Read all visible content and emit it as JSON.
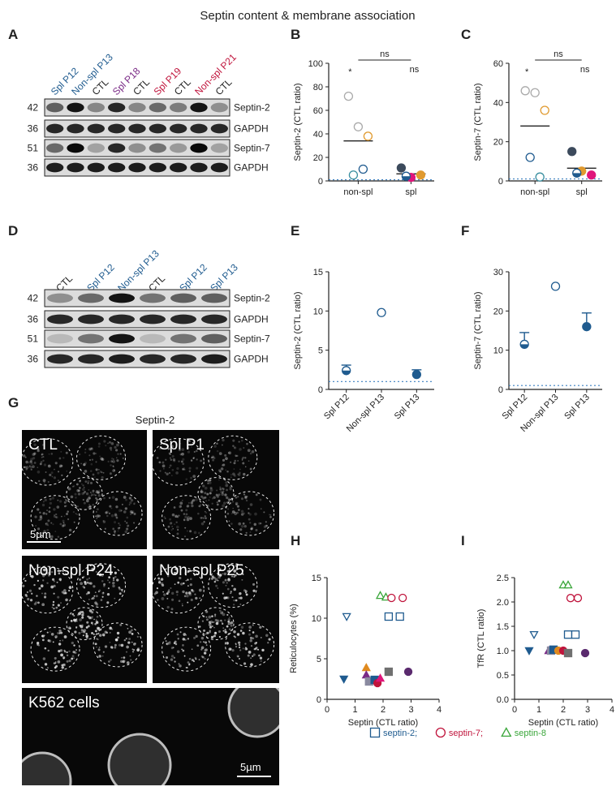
{
  "figure_title": "Septin content & membrane association",
  "panels": {
    "A": {
      "letter": "A",
      "lanes": [
        {
          "label": "Spl P12",
          "color": "#1f5b8f"
        },
        {
          "label": "Non-spl P13",
          "color": "#1f5b8f"
        },
        {
          "label": "CTL",
          "color": "#222222"
        },
        {
          "label": "Spl P18",
          "color": "#7a2a86"
        },
        {
          "label": "CTL",
          "color": "#222222"
        },
        {
          "label": "Spl P19",
          "color": "#c0143c"
        },
        {
          "label": "CTL",
          "color": "#222222"
        },
        {
          "label": "Non-spl P21",
          "color": "#c0143c"
        },
        {
          "label": "CTL",
          "color": "#222222"
        }
      ],
      "blots": [
        {
          "mw": "42",
          "name": "Septin-2",
          "intensity": [
            0.55,
            0.95,
            0.35,
            0.85,
            0.35,
            0.5,
            0.4,
            0.95,
            0.3
          ]
        },
        {
          "mw": "36",
          "name": "GAPDH",
          "intensity": [
            0.85,
            0.85,
            0.85,
            0.85,
            0.85,
            0.85,
            0.85,
            0.85,
            0.85
          ]
        },
        {
          "mw": "51",
          "name": "Septin-7",
          "intensity": [
            0.5,
            1.0,
            0.2,
            0.85,
            0.3,
            0.45,
            0.25,
            1.0,
            0.2
          ]
        },
        {
          "mw": "36",
          "name": "GAPDH",
          "intensity": [
            0.9,
            0.9,
            0.9,
            0.9,
            0.9,
            0.9,
            0.9,
            0.9,
            0.9
          ]
        }
      ]
    },
    "D": {
      "letter": "D",
      "lanes": [
        {
          "label": "CTL",
          "color": "#222222"
        },
        {
          "label": "Spl P12",
          "color": "#1f5b8f"
        },
        {
          "label": "Non-spl P13",
          "color": "#1f5b8f"
        },
        {
          "label": "CTL",
          "color": "#222222"
        },
        {
          "label": "Spl P12",
          "color": "#1f5b8f"
        },
        {
          "label": "Spl P13",
          "color": "#1f5b8f"
        }
      ],
      "blots": [
        {
          "mw": "42",
          "name": "Septin-2",
          "intensity": [
            0.3,
            0.5,
            0.95,
            0.45,
            0.55,
            0.55
          ]
        },
        {
          "mw": "36",
          "name": "GAPDH",
          "intensity": [
            0.85,
            0.85,
            0.85,
            0.85,
            0.85,
            0.85
          ]
        },
        {
          "mw": "51",
          "name": "Septin-7",
          "intensity": [
            0.08,
            0.45,
            0.95,
            0.08,
            0.45,
            0.55
          ]
        },
        {
          "mw": "36",
          "name": "GAPDH",
          "intensity": [
            0.85,
            0.85,
            0.9,
            0.85,
            0.85,
            0.9
          ]
        }
      ]
    },
    "G": {
      "letter": "G",
      "title": "Septin-2",
      "images": [
        {
          "label": "CTL",
          "scale": "5µm"
        },
        {
          "label": "Spl P1",
          "scale": ""
        },
        {
          "label": "Non-spl P24",
          "scale": ""
        },
        {
          "label": "Non-spl P25",
          "scale": ""
        },
        {
          "label": "K562 cells",
          "scale": "5µm"
        }
      ]
    },
    "legend": [
      {
        "symbol": "square",
        "label": "septin-2;",
        "color": "#1f5b8f"
      },
      {
        "symbol": "circle",
        "label": "septin-7;",
        "color": "#c0143c"
      },
      {
        "symbol": "triangle",
        "label": "septin-8",
        "color": "#3aa63a"
      }
    ]
  },
  "chart_data": [
    {
      "panel": "B",
      "type": "scatter",
      "ylabel": "Septin-2 (CTL ratio)",
      "xlabel": "",
      "categories": [
        "non-spl",
        "spl"
      ],
      "ylim": [
        0,
        100
      ],
      "yticks": [
        0,
        20,
        40,
        60,
        80,
        100
      ],
      "reference_line": 1,
      "means": [
        {
          "category": "non-spl",
          "value": 34
        },
        {
          "category": "spl",
          "value": 6
        }
      ],
      "significance": [
        {
          "label": "*",
          "position": "non-spl"
        },
        {
          "label": "ns",
          "position": "between"
        },
        {
          "label": "ns",
          "position": "spl"
        }
      ],
      "points": [
        {
          "category": "non-spl",
          "y": 72,
          "color": "#aaaaaa",
          "fill": "open"
        },
        {
          "category": "non-spl",
          "y": 46,
          "color": "#aaaaaa",
          "fill": "open"
        },
        {
          "category": "non-spl",
          "y": 38,
          "color": "#e09a2f",
          "fill": "open"
        },
        {
          "category": "non-spl",
          "y": 5,
          "color": "#3a8fa0",
          "fill": "open"
        },
        {
          "category": "non-spl",
          "y": 10,
          "color": "#1f5b8f",
          "fill": "open"
        },
        {
          "category": "spl",
          "y": 11,
          "color": "#3c4a5c",
          "fill": "full"
        },
        {
          "category": "spl",
          "y": 3,
          "color": "#e0157a",
          "fill": "full"
        },
        {
          "category": "spl",
          "y": 5,
          "color": "#e09a2f",
          "fill": "full"
        },
        {
          "category": "spl",
          "y": 4,
          "color": "#1f5b8f",
          "fill": "half"
        }
      ]
    },
    {
      "panel": "C",
      "type": "scatter",
      "ylabel": "Septin-7 (CTL ratio)",
      "xlabel": "",
      "categories": [
        "non-spl",
        "spl"
      ],
      "ylim": [
        0,
        60
      ],
      "yticks": [
        0,
        20,
        40,
        60
      ],
      "reference_line": 1,
      "means": [
        {
          "category": "non-spl",
          "value": 28
        },
        {
          "category": "spl",
          "value": 6.5
        }
      ],
      "significance": [
        {
          "label": "*",
          "position": "non-spl"
        },
        {
          "label": "ns",
          "position": "between"
        },
        {
          "label": "ns",
          "position": "spl"
        }
      ],
      "points": [
        {
          "category": "non-spl",
          "y": 46,
          "color": "#aaaaaa",
          "fill": "open"
        },
        {
          "category": "non-spl",
          "y": 45,
          "color": "#aaaaaa",
          "fill": "open"
        },
        {
          "category": "non-spl",
          "y": 36,
          "color": "#e09a2f",
          "fill": "open"
        },
        {
          "category": "non-spl",
          "y": 12,
          "color": "#1f5b8f",
          "fill": "open"
        },
        {
          "category": "non-spl",
          "y": 2,
          "color": "#3a8fa0",
          "fill": "open"
        },
        {
          "category": "spl",
          "y": 15,
          "color": "#3c4a5c",
          "fill": "full"
        },
        {
          "category": "spl",
          "y": 5,
          "color": "#e09a2f",
          "fill": "full"
        },
        {
          "category": "spl",
          "y": 3,
          "color": "#e0157a",
          "fill": "full"
        },
        {
          "category": "spl",
          "y": 4,
          "color": "#1f5b8f",
          "fill": "half"
        }
      ]
    },
    {
      "panel": "E",
      "type": "scatter",
      "ylabel": "Septin-2 (CTL ratio)",
      "xlabel": "",
      "categories": [
        "Spl P12",
        "Non-spl P13",
        "Spl P13"
      ],
      "ylim": [
        0,
        15
      ],
      "yticks": [
        0,
        5,
        10,
        15
      ],
      "reference_line": 1,
      "points": [
        {
          "category": "Spl P12",
          "y": 2.4,
          "err": 0.7,
          "color": "#1f5b8f",
          "fill": "half"
        },
        {
          "category": "Non-spl P13",
          "y": 9.8,
          "color": "#1f5b8f",
          "fill": "open"
        },
        {
          "category": "Spl P13",
          "y": 1.9,
          "err": 0.6,
          "color": "#1f5b8f",
          "fill": "full"
        }
      ]
    },
    {
      "panel": "F",
      "type": "scatter",
      "ylabel": "Septin-7 (CTL ratio)",
      "xlabel": "",
      "categories": [
        "Spl P12",
        "Non-spl P13",
        "Spl P13"
      ],
      "ylim": [
        0,
        30
      ],
      "yticks": [
        0,
        10,
        20,
        30
      ],
      "reference_line": 1,
      "points": [
        {
          "category": "Spl P12",
          "y": 11.5,
          "err": 3,
          "color": "#1f5b8f",
          "fill": "half"
        },
        {
          "category": "Non-spl P13",
          "y": 26.3,
          "color": "#1f5b8f",
          "fill": "open"
        },
        {
          "category": "Spl P13",
          "y": 16,
          "err": 3.5,
          "color": "#1f5b8f",
          "fill": "full"
        }
      ]
    },
    {
      "panel": "H",
      "type": "scatter",
      "ylabel": "Reticulocytes (%)",
      "xlabel": "Septin (CTL ratio)",
      "xlim": [
        0,
        4
      ],
      "xticks": [
        0,
        1,
        2,
        3,
        4
      ],
      "ylim": [
        0,
        15
      ],
      "yticks": [
        0,
        5,
        10,
        15
      ],
      "points": [
        {
          "x": 0.7,
          "y": 10.2,
          "shape": "tri-down",
          "color": "#1f5b8f",
          "fill": "open"
        },
        {
          "x": 2.2,
          "y": 10.2,
          "shape": "square",
          "color": "#1f5b8f",
          "fill": "open"
        },
        {
          "x": 2.6,
          "y": 10.2,
          "shape": "square",
          "color": "#1f5b8f",
          "fill": "open"
        },
        {
          "x": 1.9,
          "y": 12.8,
          "shape": "triangle",
          "color": "#3aa63a",
          "fill": "open"
        },
        {
          "x": 2.1,
          "y": 12.6,
          "shape": "triangle",
          "color": "#3aa63a",
          "fill": "open"
        },
        {
          "x": 2.3,
          "y": 12.5,
          "shape": "circle",
          "color": "#c0143c",
          "fill": "open"
        },
        {
          "x": 2.7,
          "y": 12.5,
          "shape": "circle",
          "color": "#c0143c",
          "fill": "open"
        },
        {
          "x": 0.6,
          "y": 2.5,
          "shape": "tri-down",
          "color": "#1f5b8f",
          "fill": "full"
        },
        {
          "x": 1.4,
          "y": 3.9,
          "shape": "triangle",
          "color": "#e08a1f",
          "fill": "full"
        },
        {
          "x": 1.4,
          "y": 3.0,
          "shape": "triangle",
          "color": "#7a2a86",
          "fill": "full"
        },
        {
          "x": 1.5,
          "y": 2.2,
          "shape": "square",
          "color": "#8a8aa0",
          "fill": "full"
        },
        {
          "x": 1.7,
          "y": 2.4,
          "shape": "square",
          "color": "#1f5b8f",
          "fill": "full"
        },
        {
          "x": 1.8,
          "y": 2.0,
          "shape": "circle",
          "color": "#c0143c",
          "fill": "full"
        },
        {
          "x": 1.9,
          "y": 2.6,
          "shape": "triangle",
          "color": "#e0157a",
          "fill": "full"
        },
        {
          "x": 2.2,
          "y": 3.4,
          "shape": "square",
          "color": "#707070",
          "fill": "full"
        },
        {
          "x": 2.9,
          "y": 3.4,
          "shape": "circle",
          "color": "#5a2a6e",
          "fill": "full"
        }
      ]
    },
    {
      "panel": "I",
      "type": "scatter",
      "ylabel": "TfR (CTL ratio)",
      "xlabel": "Septin (CTL ratio)",
      "xlim": [
        0,
        4
      ],
      "xticks": [
        0,
        1,
        2,
        3,
        4
      ],
      "ylim": [
        0,
        2.5
      ],
      "yticks": [
        0.0,
        0.5,
        1.0,
        1.5,
        2.0,
        2.5
      ],
      "points": [
        {
          "x": 0.8,
          "y": 1.33,
          "shape": "tri-down",
          "color": "#1f5b8f",
          "fill": "open"
        },
        {
          "x": 2.2,
          "y": 1.33,
          "shape": "square",
          "color": "#1f5b8f",
          "fill": "open"
        },
        {
          "x": 2.5,
          "y": 1.33,
          "shape": "square",
          "color": "#1f5b8f",
          "fill": "open"
        },
        {
          "x": 2.0,
          "y": 2.35,
          "shape": "triangle",
          "color": "#3aa63a",
          "fill": "open"
        },
        {
          "x": 2.2,
          "y": 2.35,
          "shape": "triangle",
          "color": "#3aa63a",
          "fill": "open"
        },
        {
          "x": 2.3,
          "y": 2.08,
          "shape": "circle",
          "color": "#c0143c",
          "fill": "open"
        },
        {
          "x": 2.6,
          "y": 2.08,
          "shape": "circle",
          "color": "#c0143c",
          "fill": "open"
        },
        {
          "x": 0.6,
          "y": 1.0,
          "shape": "tri-down",
          "color": "#1f5b8f",
          "fill": "full"
        },
        {
          "x": 1.4,
          "y": 1.0,
          "shape": "triangle",
          "color": "#7a2a86",
          "fill": "full"
        },
        {
          "x": 1.5,
          "y": 1.0,
          "shape": "square",
          "color": "#8a8aa0",
          "fill": "full"
        },
        {
          "x": 1.6,
          "y": 1.02,
          "shape": "square",
          "color": "#1f5b8f",
          "fill": "full"
        },
        {
          "x": 1.8,
          "y": 1.0,
          "shape": "circle",
          "color": "#e08a1f",
          "fill": "full"
        },
        {
          "x": 2.0,
          "y": 1.0,
          "shape": "circle",
          "color": "#c0143c",
          "fill": "full"
        },
        {
          "x": 2.2,
          "y": 0.95,
          "shape": "square",
          "color": "#707070",
          "fill": "full"
        },
        {
          "x": 2.9,
          "y": 0.95,
          "shape": "circle",
          "color": "#5a2a6e",
          "fill": "full"
        }
      ]
    }
  ]
}
